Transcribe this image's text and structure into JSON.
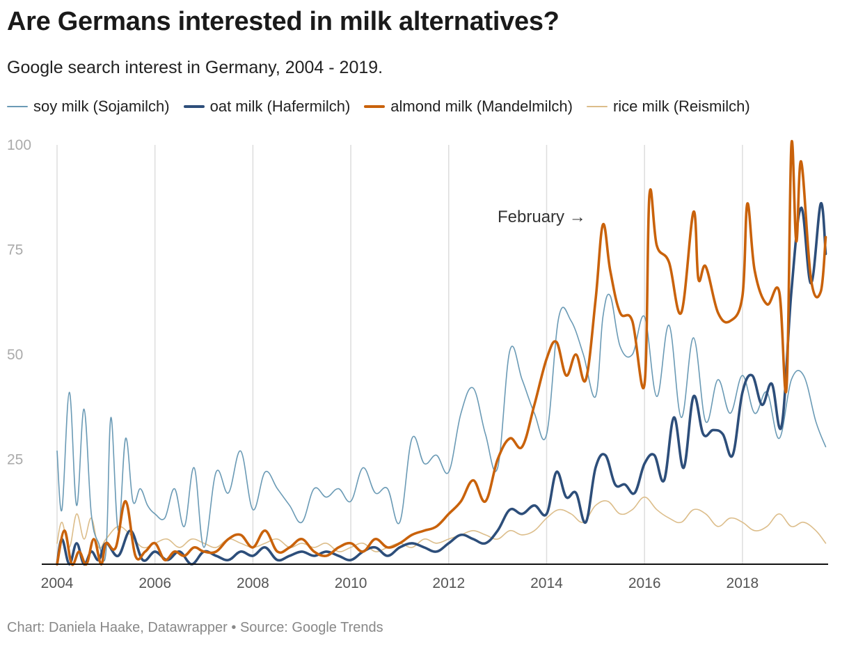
{
  "title": "Are Germans interested in milk alternatives?",
  "subtitle": "Google search interest in Germany, 2004 - 2019.",
  "footer": "Chart: Daniela Haake, Datawrapper • Source: Google Trends",
  "chart_data": {
    "type": "line",
    "title": "Are Germans interested in milk alternatives?",
    "subtitle": "Google search interest in Germany, 2004 - 2019.",
    "xlabel": "",
    "ylabel": "",
    "xlim": [
      2004.0,
      2019.75
    ],
    "ylim": [
      0,
      100
    ],
    "yticks": [
      "25",
      "50",
      "75",
      "100"
    ],
    "xticks": [
      "2004",
      "2006",
      "2008",
      "2010",
      "2012",
      "2014",
      "2016",
      "2018"
    ],
    "grid": "vertical",
    "legend_position": "top",
    "annotation": "February →",
    "series": [
      {
        "name": "soy milk (Sojamilch)",
        "color": "#6a9ab5",
        "width": 1.6,
        "x": [
          2004.0,
          2004.1,
          2004.25,
          2004.4,
          2004.55,
          2004.7,
          2004.85,
          2005.0,
          2005.1,
          2005.25,
          2005.4,
          2005.55,
          2005.7,
          2005.85,
          2006.0,
          2006.2,
          2006.4,
          2006.6,
          2006.8,
          2007.0,
          2007.25,
          2007.5,
          2007.75,
          2008.0,
          2008.25,
          2008.5,
          2008.75,
          2009.0,
          2009.25,
          2009.5,
          2009.75,
          2010.0,
          2010.25,
          2010.5,
          2010.75,
          2011.0,
          2011.25,
          2011.5,
          2011.75,
          2012.0,
          2012.25,
          2012.5,
          2012.75,
          2013.0,
          2013.25,
          2013.5,
          2013.75,
          2014.0,
          2014.25,
          2014.5,
          2014.75,
          2015.0,
          2015.15,
          2015.3,
          2015.5,
          2015.75,
          2016.0,
          2016.25,
          2016.5,
          2016.75,
          2017.0,
          2017.25,
          2017.5,
          2017.75,
          2018.0,
          2018.25,
          2018.5,
          2018.75,
          2019.0,
          2019.25,
          2019.5,
          2019.7
        ],
        "y": [
          27,
          13,
          41,
          14,
          37,
          12,
          5,
          3,
          35,
          8,
          30,
          15,
          18,
          14,
          12,
          11,
          18,
          9,
          23,
          4,
          22,
          17,
          27,
          13,
          22,
          18,
          14,
          10,
          18,
          16,
          18,
          15,
          23,
          17,
          18,
          10,
          30,
          24,
          26,
          22,
          36,
          42,
          31,
          23,
          51,
          44,
          36,
          31,
          59,
          58,
          50,
          40,
          59,
          64,
          52,
          50,
          59,
          40,
          57,
          35,
          54,
          34,
          44,
          36,
          45,
          36,
          41,
          30,
          44,
          45,
          34,
          28
        ]
      },
      {
        "name": "oat milk (Hafermilch)",
        "color": "#2d4e7a",
        "width": 3.6,
        "x": [
          2004.0,
          2004.1,
          2004.25,
          2004.4,
          2004.55,
          2004.7,
          2004.85,
          2005.0,
          2005.25,
          2005.5,
          2005.75,
          2006.0,
          2006.25,
          2006.5,
          2006.75,
          2007.0,
          2007.25,
          2007.5,
          2007.75,
          2008.0,
          2008.25,
          2008.5,
          2008.75,
          2009.0,
          2009.25,
          2009.5,
          2009.75,
          2010.0,
          2010.25,
          2010.5,
          2010.75,
          2011.0,
          2011.25,
          2011.5,
          2011.75,
          2012.0,
          2012.25,
          2012.5,
          2012.75,
          2013.0,
          2013.25,
          2013.5,
          2013.75,
          2014.0,
          2014.2,
          2014.4,
          2014.6,
          2014.8,
          2015.0,
          2015.2,
          2015.4,
          2015.6,
          2015.8,
          2016.0,
          2016.2,
          2016.4,
          2016.6,
          2016.8,
          2017.0,
          2017.2,
          2017.4,
          2017.6,
          2017.8,
          2018.0,
          2018.2,
          2018.4,
          2018.6,
          2018.8,
          2019.0,
          2019.2,
          2019.4,
          2019.6,
          2019.7
        ],
        "y": [
          0,
          6,
          0,
          5,
          0,
          3,
          1,
          5,
          2,
          8,
          1,
          3,
          1,
          3,
          0,
          3,
          2,
          1,
          3,
          2,
          4,
          1,
          2,
          3,
          2,
          3,
          2,
          1,
          3,
          4,
          2,
          4,
          5,
          4,
          3,
          5,
          7,
          6,
          5,
          8,
          13,
          12,
          14,
          12,
          22,
          16,
          17,
          10,
          23,
          26,
          19,
          19,
          17,
          24,
          26,
          20,
          35,
          23,
          40,
          31,
          32,
          31,
          26,
          41,
          45,
          38,
          43,
          33,
          65,
          85,
          67,
          86,
          74
        ]
      },
      {
        "name": "almond milk (Mandelmilch)",
        "color": "#c9620b",
        "width": 3.6,
        "x": [
          2004.0,
          2004.15,
          2004.3,
          2004.45,
          2004.6,
          2004.75,
          2004.9,
          2005.0,
          2005.2,
          2005.4,
          2005.6,
          2005.8,
          2006.0,
          2006.2,
          2006.4,
          2006.6,
          2006.8,
          2007.0,
          2007.25,
          2007.5,
          2007.75,
          2008.0,
          2008.25,
          2008.5,
          2008.75,
          2009.0,
          2009.25,
          2009.5,
          2009.75,
          2010.0,
          2010.25,
          2010.5,
          2010.75,
          2011.0,
          2011.25,
          2011.5,
          2011.75,
          2012.0,
          2012.25,
          2012.5,
          2012.75,
          2013.0,
          2013.25,
          2013.5,
          2013.75,
          2014.0,
          2014.2,
          2014.4,
          2014.6,
          2014.8,
          2015.0,
          2015.15,
          2015.3,
          2015.5,
          2015.75,
          2016.0,
          2016.1,
          2016.25,
          2016.5,
          2016.75,
          2017.0,
          2017.1,
          2017.25,
          2017.5,
          2017.75,
          2018.0,
          2018.1,
          2018.25,
          2018.5,
          2018.75,
          2018.9,
          2019.0,
          2019.1,
          2019.2,
          2019.4,
          2019.6,
          2019.7
        ],
        "y": [
          0,
          8,
          0,
          3,
          0,
          6,
          0,
          5,
          4,
          15,
          2,
          3,
          5,
          1,
          3,
          2,
          4,
          3,
          3,
          6,
          7,
          4,
          8,
          3,
          4,
          6,
          3,
          2,
          4,
          5,
          3,
          6,
          4,
          5,
          7,
          8,
          9,
          12,
          15,
          20,
          15,
          25,
          30,
          28,
          38,
          49,
          53,
          45,
          50,
          44,
          63,
          81,
          70,
          60,
          58,
          43,
          88,
          76,
          72,
          60,
          84,
          68,
          71,
          60,
          58,
          64,
          86,
          70,
          62,
          65,
          42,
          100,
          77,
          96,
          68,
          65,
          78
        ]
      },
      {
        "name": "rice milk (Reismilch)",
        "color": "#dcbd8a",
        "width": 1.6,
        "x": [
          2004.0,
          2004.1,
          2004.25,
          2004.4,
          2004.55,
          2004.7,
          2004.85,
          2005.0,
          2005.25,
          2005.5,
          2005.75,
          2006.0,
          2006.25,
          2006.5,
          2006.75,
          2007.0,
          2007.25,
          2007.5,
          2007.75,
          2008.0,
          2008.25,
          2008.5,
          2008.75,
          2009.0,
          2009.25,
          2009.5,
          2009.75,
          2010.0,
          2010.25,
          2010.5,
          2010.75,
          2011.0,
          2011.25,
          2011.5,
          2011.75,
          2012.0,
          2012.25,
          2012.5,
          2012.75,
          2013.0,
          2013.25,
          2013.5,
          2013.75,
          2014.0,
          2014.25,
          2014.5,
          2014.75,
          2015.0,
          2015.25,
          2015.5,
          2015.75,
          2016.0,
          2016.25,
          2016.5,
          2016.75,
          2017.0,
          2017.25,
          2017.5,
          2017.75,
          2018.0,
          2018.25,
          2018.5,
          2018.75,
          2019.0,
          2019.25,
          2019.5,
          2019.7
        ],
        "y": [
          5,
          10,
          4,
          12,
          6,
          11,
          4,
          6,
          9,
          7,
          4,
          5,
          6,
          4,
          6,
          5,
          4,
          6,
          5,
          4,
          5,
          6,
          4,
          5,
          4,
          5,
          3,
          4,
          5,
          3,
          4,
          5,
          4,
          6,
          5,
          6,
          7,
          8,
          7,
          6,
          8,
          7,
          8,
          11,
          13,
          12,
          10,
          14,
          15,
          12,
          13,
          16,
          13,
          11,
          10,
          13,
          12,
          9,
          11,
          10,
          8,
          9,
          12,
          9,
          10,
          8,
          5
        ]
      }
    ]
  }
}
